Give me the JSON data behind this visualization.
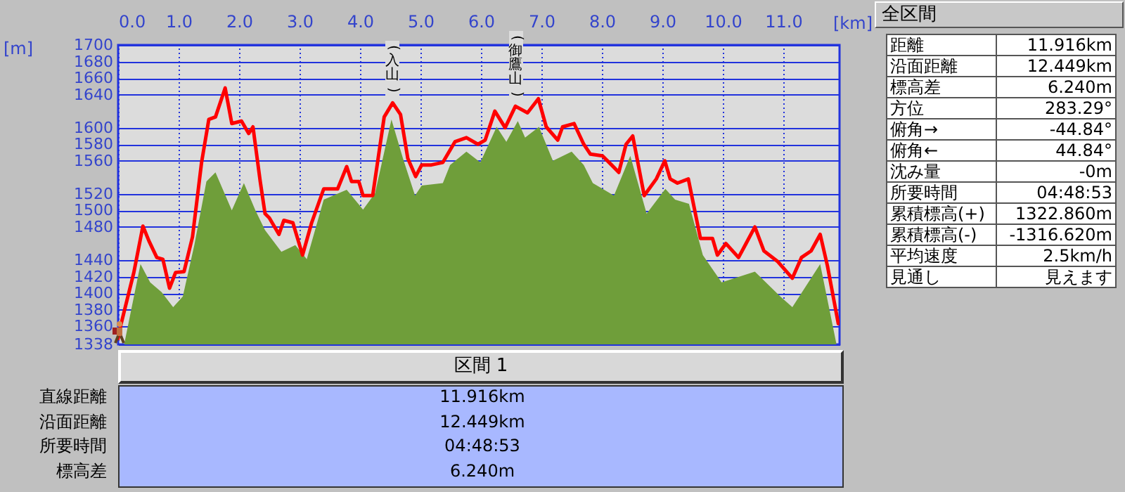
{
  "chart_data": [
    {
      "type": "line",
      "xlabel": "[km]",
      "ylabel": "[m]",
      "xlim": [
        0,
        11.93
      ],
      "xticks": [
        {
          "value": 0,
          "label": "0.0"
        },
        {
          "value": 1,
          "label": "1.0"
        },
        {
          "value": 2,
          "label": "2.0"
        },
        {
          "value": 3,
          "label": "3.0"
        },
        {
          "value": 4,
          "label": "4.0"
        },
        {
          "value": 5,
          "label": "5.0"
        },
        {
          "value": 6,
          "label": "6.0"
        },
        {
          "value": 7,
          "label": "7.0"
        },
        {
          "value": 8,
          "label": "8.0"
        },
        {
          "value": 9,
          "label": "9.0"
        },
        {
          "value": 10,
          "label": "10.0"
        },
        {
          "value": 11,
          "label": "11.0"
        }
      ],
      "ylim": [
        1338,
        1700
      ],
      "yticks": [
        1338,
        1360,
        1380,
        1400,
        1420,
        1440,
        1480,
        1500,
        1520,
        1560,
        1580,
        1600,
        1640,
        1660,
        1680,
        1700
      ],
      "grid": true,
      "series": [
        {
          "type": "area",
          "color": "#6f9e3a",
          "x": [
            0.1,
            0.37,
            0.53,
            0.72,
            0.91,
            1.07,
            1.26,
            1.46,
            1.61,
            1.88,
            2.08,
            2.27,
            2.43,
            2.7,
            2.93,
            3.12,
            3.4,
            3.78,
            4.05,
            4.25,
            4.52,
            4.71,
            4.91,
            5.02,
            5.37,
            5.49,
            5.76,
            5.99,
            6.26,
            6.42,
            6.61,
            6.73,
            6.96,
            7.19,
            7.5,
            7.7,
            7.85,
            8.2,
            8.47,
            8.74,
            9.05,
            9.21,
            9.44,
            9.67,
            9.98,
            10.53,
            10.95,
            11.15,
            11.61,
            11.88
          ],
          "values": [
            1338,
            1435,
            1413,
            1401,
            1383,
            1396,
            1458,
            1535,
            1546,
            1500,
            1533,
            1500,
            1476,
            1450,
            1458,
            1441,
            1513,
            1525,
            1501,
            1521,
            1610,
            1563,
            1518,
            1530,
            1533,
            1555,
            1571,
            1558,
            1601,
            1583,
            1608,
            1588,
            1601,
            1560,
            1571,
            1555,
            1533,
            1518,
            1566,
            1496,
            1526,
            1513,
            1508,
            1446,
            1413,
            1426,
            1396,
            1383,
            1435,
            1338
          ]
        },
        {
          "type": "line",
          "color": "#ff0000",
          "x": [
            0,
            0.05,
            0.26,
            0.41,
            0.51,
            0.64,
            0.74,
            0.85,
            0.95,
            1.09,
            1.23,
            1.38,
            1.5,
            1.61,
            1.77,
            1.88,
            2.04,
            2.16,
            2.23,
            2.35,
            2.43,
            2.5,
            2.66,
            2.74,
            2.89,
            3.05,
            3.2,
            3.4,
            3.63,
            3.78,
            3.86,
            3.98,
            4.05,
            4.21,
            4.29,
            4.4,
            4.54,
            4.67,
            4.79,
            4.92,
            5.02,
            5.18,
            5.37,
            5.57,
            5.76,
            5.95,
            6.07,
            6.23,
            6.4,
            6.57,
            6.77,
            6.95,
            7.08,
            7.27,
            7.35,
            7.54,
            7.7,
            7.81,
            8.01,
            8.16,
            8.28,
            8.4,
            8.51,
            8.7,
            8.9,
            9.04,
            9.13,
            9.25,
            9.43,
            9.63,
            9.83,
            9.91,
            10.05,
            10.26,
            10.37,
            10.53,
            10.68,
            10.91,
            11.15,
            11.3,
            11.46,
            11.61,
            11.73,
            11.91
          ],
          "values": [
            1345,
            1363,
            1425,
            1481,
            1463,
            1443,
            1441,
            1406,
            1425,
            1426,
            1468,
            1558,
            1610,
            1613,
            1648,
            1605,
            1608,
            1593,
            1601,
            1535,
            1496,
            1491,
            1471,
            1488,
            1485,
            1446,
            1485,
            1526,
            1526,
            1553,
            1535,
            1535,
            1518,
            1518,
            1558,
            1613,
            1630,
            1616,
            1563,
            1541,
            1555,
            1555,
            1558,
            1583,
            1588,
            1580,
            1585,
            1620,
            1600,
            1626,
            1618,
            1635,
            1601,
            1585,
            1601,
            1605,
            1580,
            1568,
            1566,
            1555,
            1546,
            1580,
            1590,
            1518,
            1538,
            1560,
            1538,
            1533,
            1538,
            1466,
            1466,
            1446,
            1460,
            1443,
            1458,
            1480,
            1451,
            1438,
            1418,
            1443,
            1451,
            1471,
            1433,
            1363
          ]
        }
      ],
      "annotations": [
        {
          "text": "(入山)",
          "x": 4.54,
          "y": 1630
        },
        {
          "text": "(御鷹山)",
          "x": 6.57,
          "y": 1626
        }
      ]
    },
    {
      "type": "other",
      "title": "全区間",
      "annotations": [
        "距離",
        "11.916km",
        "沿面距離",
        "12.449km",
        "標高差",
        "6.240m",
        "方位",
        "283.29°",
        "俯角→",
        "-44.84°",
        "俯角←",
        "44.84°",
        "沈み量",
        "-0m",
        "所要時間",
        "04:48:53",
        "累積標高(+)",
        "1322.860m",
        "累積標高(-)",
        "-1316.620m",
        "平均速度",
        "2.5km/h",
        "見通し",
        "見えます"
      ]
    },
    {
      "type": "other",
      "title": "区間 1",
      "annotations": [
        "直線距離",
        "11.916km",
        "沿面距離",
        "12.449km",
        "所要時間",
        "04:48:53",
        "標高差",
        "6.240m"
      ]
    }
  ]
}
